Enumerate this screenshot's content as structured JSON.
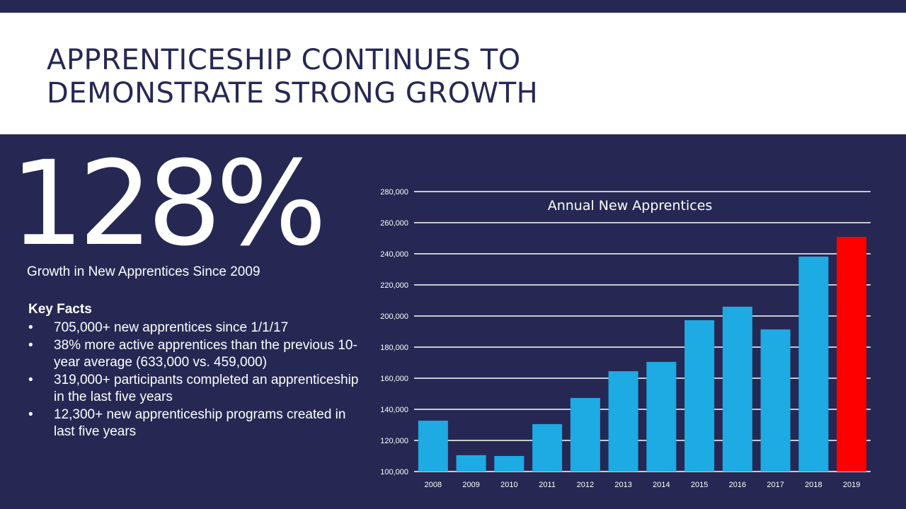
{
  "slide": {
    "title_line1": "APPRENTICESHIP CONTINUES TO",
    "title_line2": "DEMONSTRATE STRONG GROWTH",
    "big_stat": "128%",
    "big_stat_caption": "Growth in New Apprentices Since 2009",
    "key_facts_title": "Key Facts",
    "bullet": "•",
    "key_facts": [
      "705,000+ new apprentices since 1/1/17",
      "38% more active apprentices than the previous 10-year average (633,000 vs. 459,000)",
      "319,000+ participants completed an apprenticeship in the last five years",
      "12,300+ new apprenticeship programs created in last five years"
    ]
  },
  "colors": {
    "background": "#262853",
    "bar": "#1eaae3",
    "highlight_bar": "#ff0000",
    "gridline": "#c8c8d0"
  },
  "chart_data": {
    "type": "bar",
    "title": "Annual New Apprentices",
    "categories": [
      "2008",
      "2009",
      "2010",
      "2011",
      "2012",
      "2013",
      "2014",
      "2015",
      "2016",
      "2017",
      "2018",
      "2019"
    ],
    "values": [
      132700,
      110500,
      110000,
      130500,
      147300,
      164500,
      170500,
      197300,
      206000,
      191400,
      238200,
      250900
    ],
    "highlight_category": "2019",
    "ylim": [
      100000,
      280000
    ],
    "yticks": [
      "100,000",
      "120,000",
      "140,000",
      "160,000",
      "180,000",
      "200,000",
      "220,000",
      "240,000",
      "260,000",
      "280,000"
    ],
    "grid": true,
    "legend": "none"
  }
}
